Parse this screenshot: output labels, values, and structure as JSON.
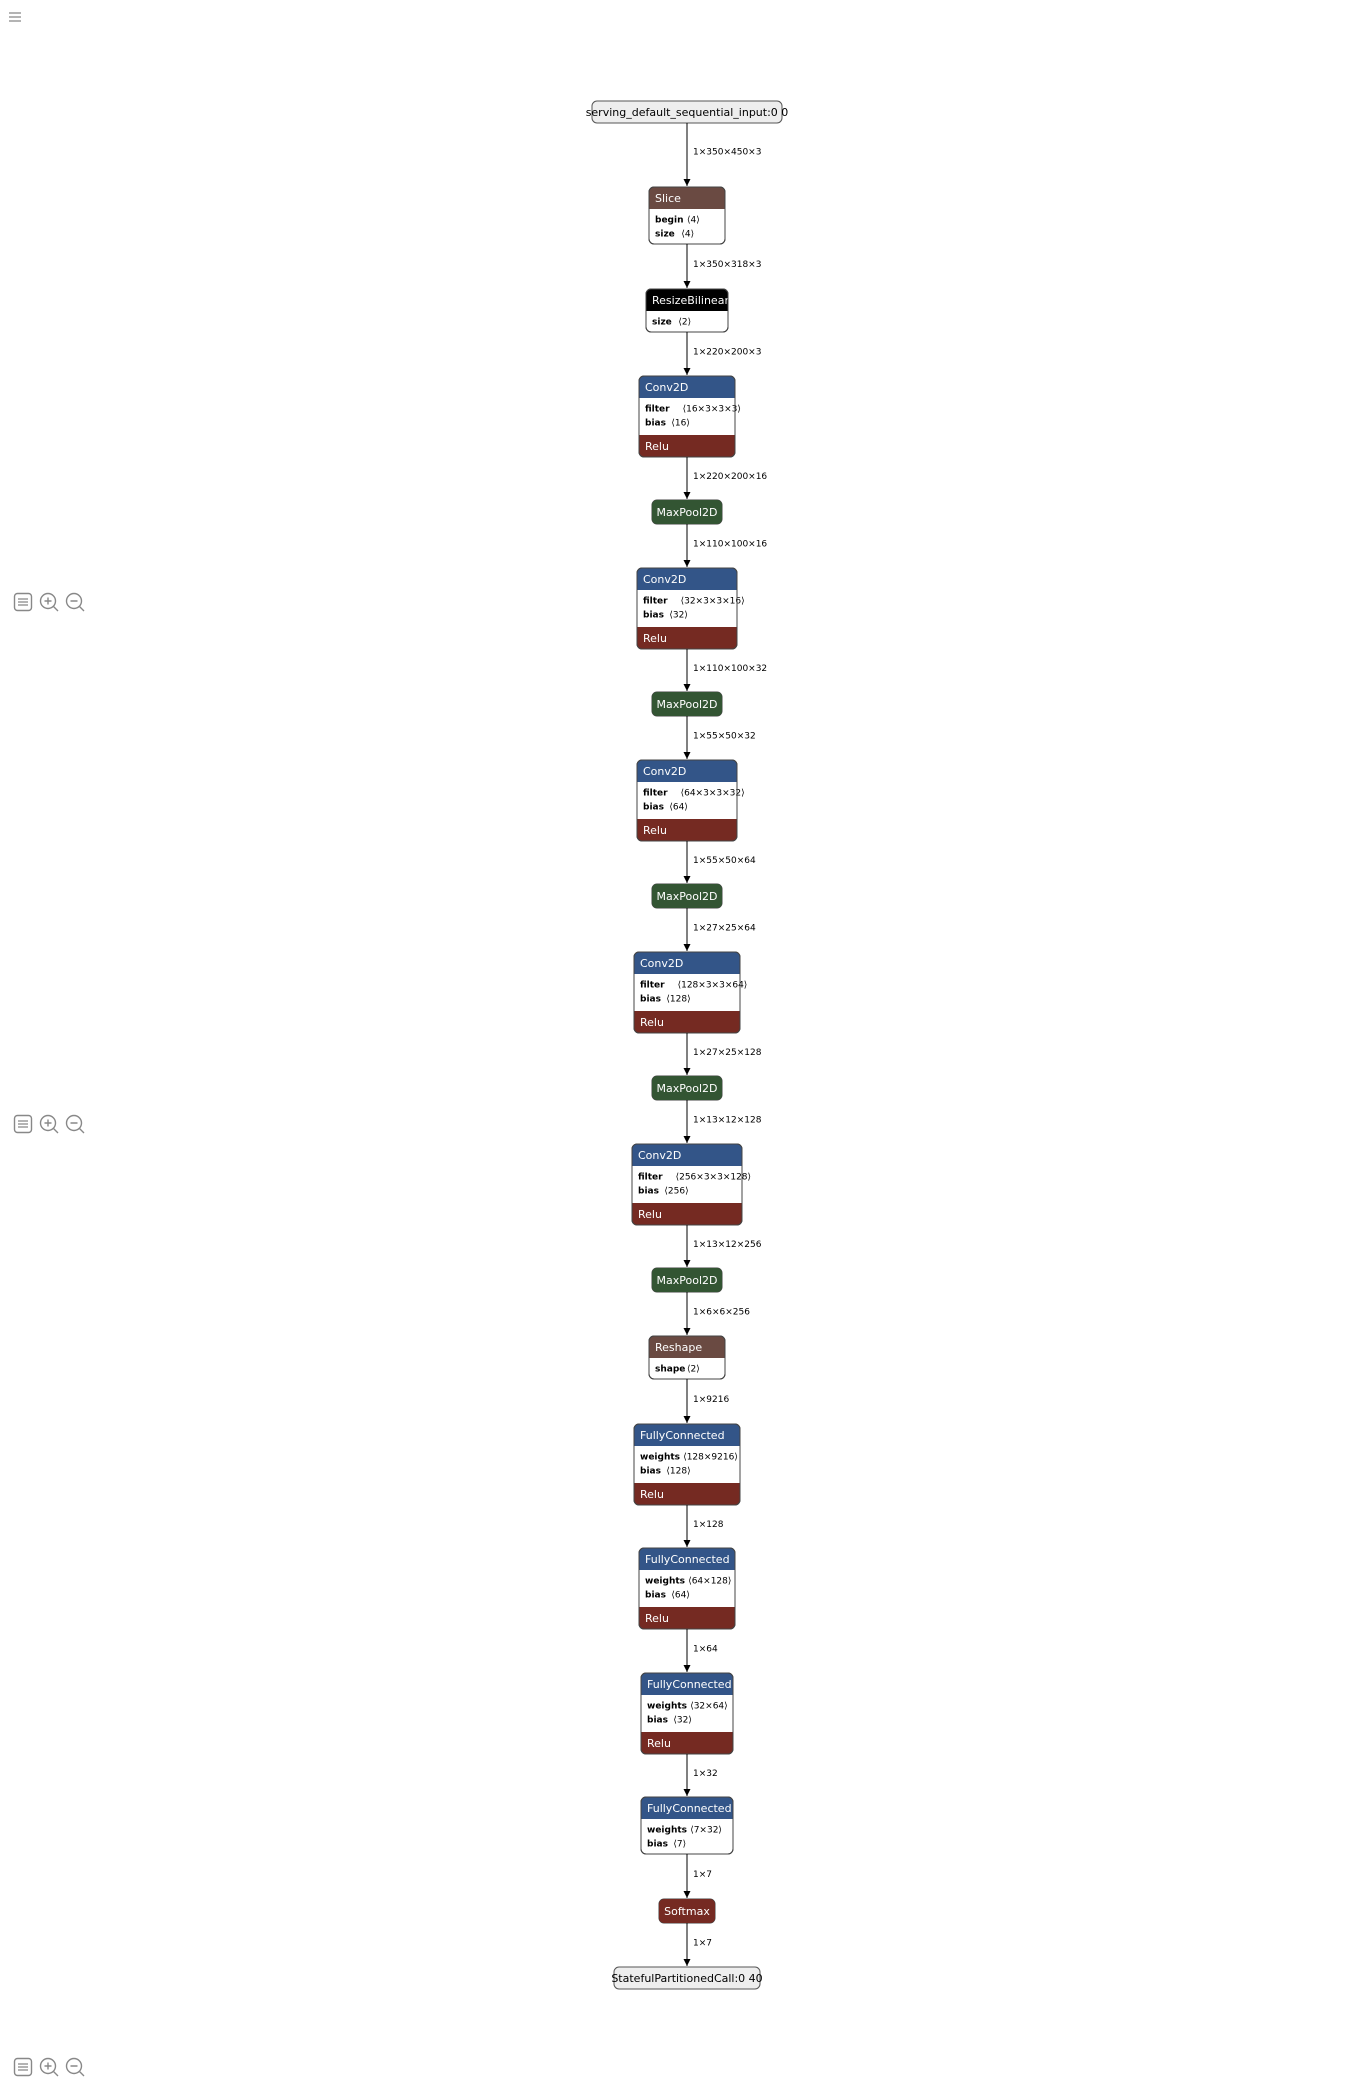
{
  "toolbar": {
    "icons": [
      "properties-icon",
      "zoom-in-icon",
      "zoom-out-icon"
    ]
  },
  "graph": {
    "input": "serving_default_sequential_input:0 0",
    "output": "StatefulPartitionedCall:0 40",
    "nodes": [
      {
        "op": "Slice",
        "type": "other",
        "attrs": [
          {
            "k": "begin",
            "v": "⟨4⟩"
          },
          {
            "k": "size",
            "v": "⟨4⟩"
          }
        ]
      },
      {
        "op": "ResizeBilinear",
        "type": "transform",
        "attrs": [
          {
            "k": "size",
            "v": "⟨2⟩"
          }
        ]
      },
      {
        "op": "Conv2D",
        "type": "layer",
        "attrs": [
          {
            "k": "filter",
            "v": "⟨16×3×3×3⟩"
          },
          {
            "k": "bias",
            "v": "⟨16⟩"
          }
        ],
        "activation": "Relu"
      },
      {
        "op": "MaxPool2D",
        "type": "pool"
      },
      {
        "op": "Conv2D",
        "type": "layer",
        "attrs": [
          {
            "k": "filter",
            "v": "⟨32×3×3×16⟩"
          },
          {
            "k": "bias",
            "v": "⟨32⟩"
          }
        ],
        "activation": "Relu"
      },
      {
        "op": "MaxPool2D",
        "type": "pool"
      },
      {
        "op": "Conv2D",
        "type": "layer",
        "attrs": [
          {
            "k": "filter",
            "v": "⟨64×3×3×32⟩"
          },
          {
            "k": "bias",
            "v": "⟨64⟩"
          }
        ],
        "activation": "Relu"
      },
      {
        "op": "MaxPool2D",
        "type": "pool"
      },
      {
        "op": "Conv2D",
        "type": "layer",
        "attrs": [
          {
            "k": "filter",
            "v": "⟨128×3×3×64⟩"
          },
          {
            "k": "bias",
            "v": "⟨128⟩"
          }
        ],
        "activation": "Relu"
      },
      {
        "op": "MaxPool2D",
        "type": "pool"
      },
      {
        "op": "Conv2D",
        "type": "layer",
        "attrs": [
          {
            "k": "filter",
            "v": "⟨256×3×3×128⟩"
          },
          {
            "k": "bias",
            "v": "⟨256⟩"
          }
        ],
        "activation": "Relu"
      },
      {
        "op": "MaxPool2D",
        "type": "pool"
      },
      {
        "op": "Reshape",
        "type": "other",
        "attrs": [
          {
            "k": "shape",
            "v": "⟨2⟩"
          }
        ]
      },
      {
        "op": "FullyConnected",
        "type": "layer",
        "attrs": [
          {
            "k": "weights",
            "v": "⟨128×9216⟩"
          },
          {
            "k": "bias",
            "v": "⟨128⟩"
          }
        ],
        "activation": "Relu"
      },
      {
        "op": "FullyConnected",
        "type": "layer",
        "attrs": [
          {
            "k": "weights",
            "v": "⟨64×128⟩"
          },
          {
            "k": "bias",
            "v": "⟨64⟩"
          }
        ],
        "activation": "Relu"
      },
      {
        "op": "FullyConnected",
        "type": "layer",
        "attrs": [
          {
            "k": "weights",
            "v": "⟨32×64⟩"
          },
          {
            "k": "bias",
            "v": "⟨32⟩"
          }
        ],
        "activation": "Relu"
      },
      {
        "op": "FullyConnected",
        "type": "layer",
        "attrs": [
          {
            "k": "weights",
            "v": "⟨7×32⟩"
          },
          {
            "k": "bias",
            "v": "⟨7⟩"
          }
        ]
      },
      {
        "op": "Softmax",
        "type": "activation"
      }
    ],
    "edges": [
      "1×350×450×3",
      "1×350×318×3",
      "1×220×200×3",
      "1×220×200×16",
      "1×110×100×16",
      "1×110×100×32",
      "1×55×50×32",
      "1×55×50×64",
      "1×27×25×64",
      "1×27×25×128",
      "1×13×12×128",
      "1×13×12×256",
      "1×6×6×256",
      "1×9216",
      "1×128",
      "1×64",
      "1×32",
      "1×7",
      "1×7"
    ]
  },
  "colors": {
    "layer": "#335588",
    "pool": "#335533",
    "activation": "#752a22",
    "other": "#6a4a42",
    "transform": "#000000",
    "io_fill": "#eeeeee",
    "edge": "#000000"
  }
}
